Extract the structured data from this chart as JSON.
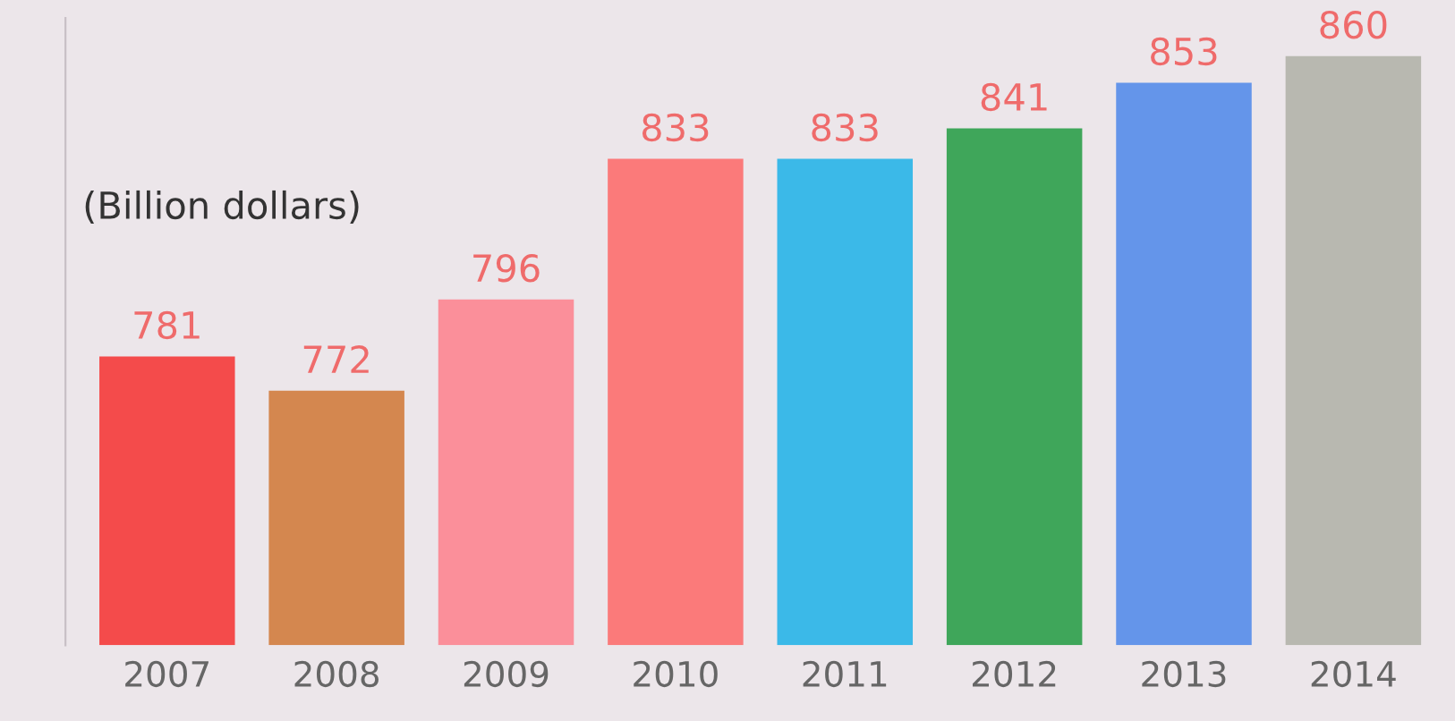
{
  "chart_data": {
    "type": "bar",
    "ylabel": "(Billion dollars)",
    "categories": [
      "2007",
      "2008",
      "2009",
      "2010",
      "2011",
      "2012",
      "2013",
      "2014"
    ],
    "values": [
      781,
      772,
      796,
      833,
      833,
      841,
      853,
      860
    ],
    "colors": [
      "#f44b4b",
      "#d4874f",
      "#fb8f9a",
      "#fb7a7a",
      "#3bb9e8",
      "#3fa65a",
      "#6495ea",
      "#b8b8b0"
    ],
    "ylim": [
      705,
      870
    ],
    "data_labels": true,
    "grid": false,
    "legend": false
  }
}
